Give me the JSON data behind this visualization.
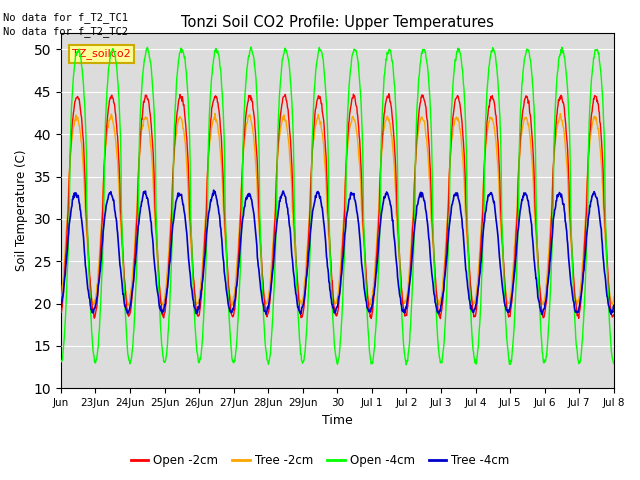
{
  "title": "Tonzi Soil CO2 Profile: Upper Temperatures",
  "xlabel": "Time",
  "ylabel": "Soil Temperature (C)",
  "ylim": [
    10,
    52
  ],
  "yticks": [
    10,
    15,
    20,
    25,
    30,
    35,
    40,
    45,
    50
  ],
  "background_color": "#dcdcdc",
  "text_annotations": [
    "No data for f_T2_TC1",
    "No data for f_T2_TC2"
  ],
  "legend_label": "TZ_soilco2",
  "legend_bg": "#ffff99",
  "legend_border": "#ccaa00",
  "series": [
    {
      "label": "Open -2cm",
      "color": "#ff0000"
    },
    {
      "label": "Tree -2cm",
      "color": "#ffa500"
    },
    {
      "label": "Open -4cm",
      "color": "#00ff00"
    },
    {
      "label": "Tree -4cm",
      "color": "#0000cc"
    }
  ],
  "x_tick_labels": [
    "Jun",
    "23Jun",
    "24Jun",
    "25Jun",
    "26Jun",
    "27Jun",
    "28Jun",
    "29Jun",
    "30",
    "Jul 1",
    "Jul 2",
    "Jul 3",
    "Jul 4",
    "Jul 5",
    "Jul 6",
    "Jul 7",
    "Jul 8"
  ],
  "num_days": 16
}
